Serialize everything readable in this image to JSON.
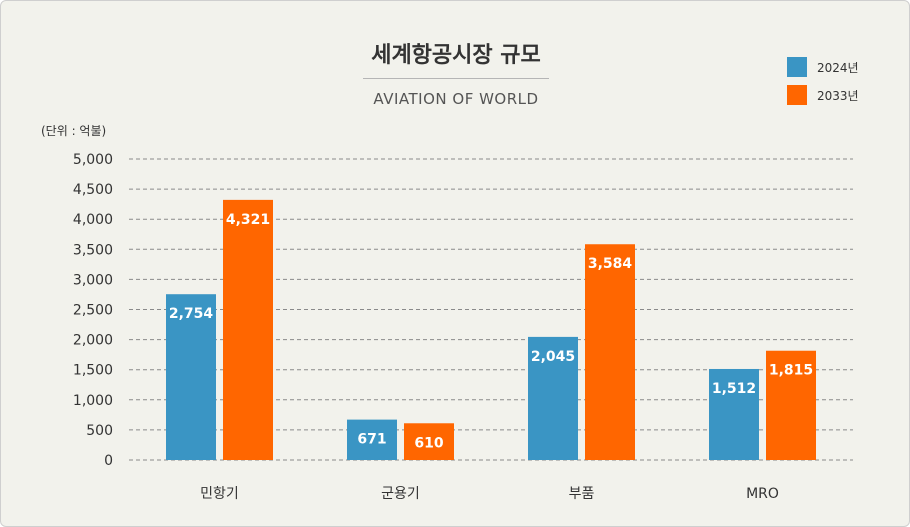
{
  "chart_data": {
    "type": "bar",
    "title": "세계항공시장 규모",
    "subtitle": "AVIATION OF WORLD",
    "unit_label": "(단위 : 억불)",
    "categories": [
      "민항기",
      "군용기",
      "부품",
      "MRO"
    ],
    "series": [
      {
        "name": "2024년",
        "color": "#3a95c4",
        "values": [
          2754,
          671,
          2045,
          1512
        ]
      },
      {
        "name": "2033년",
        "color": "#ff6600",
        "values": [
          4321,
          610,
          3584,
          1815
        ]
      }
    ],
    "ylim": [
      0,
      5000
    ],
    "yticks": [
      0,
      500,
      1000,
      1500,
      2000,
      2500,
      3000,
      3500,
      4000,
      4500,
      5000
    ],
    "ytick_labels": [
      "0",
      "500",
      "1,000",
      "1,500",
      "2,000",
      "2,500",
      "3,000",
      "3,500",
      "4,000",
      "4,500",
      "5,000"
    ],
    "data_labels": [
      [
        "2,754",
        "671",
        "2,045",
        "1,512"
      ],
      [
        "4,321",
        "610",
        "3,584",
        "1,815"
      ]
    ],
    "grid": true,
    "legend_position": "top-right"
  }
}
